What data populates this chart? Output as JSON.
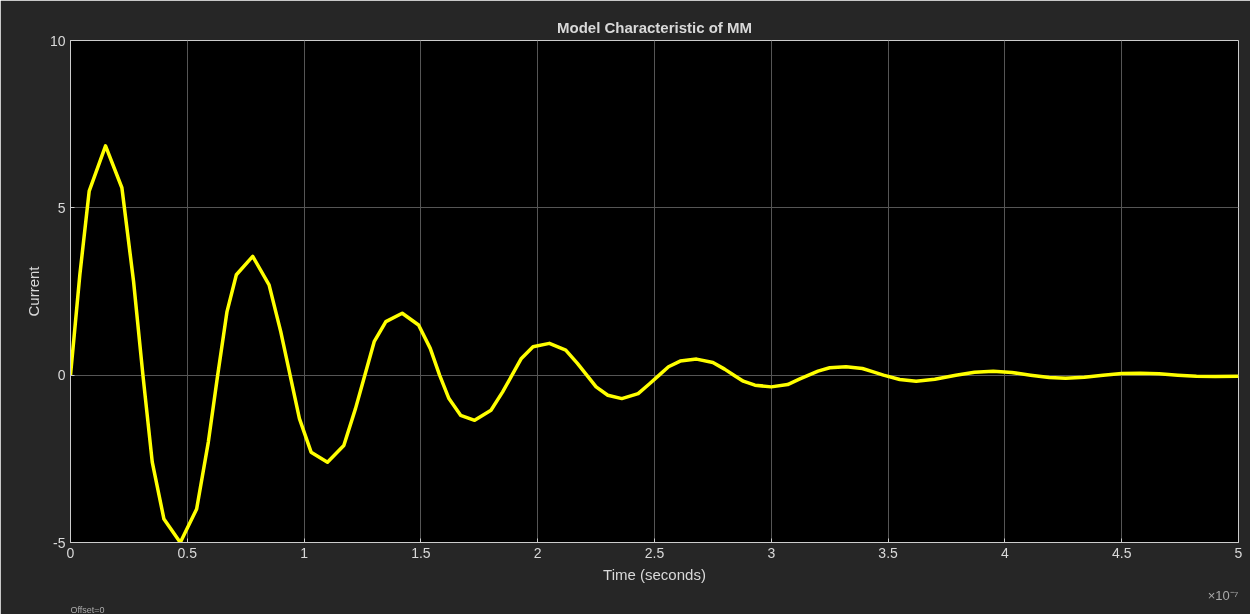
{
  "chart_data": {
    "type": "line",
    "title": "Model Characteristic of MM",
    "xlabel": "Time (seconds)",
    "ylabel": "Current",
    "annotations": [
      "×10⁻⁷",
      "Offset=0"
    ],
    "xlim": [
      0,
      5
    ],
    "ylim": [
      -5,
      10
    ],
    "xticks": [
      0,
      0.5,
      1,
      1.5,
      2,
      2.5,
      3,
      3.5,
      4,
      4.5,
      5
    ],
    "yticks": [
      -5,
      0,
      5,
      10
    ],
    "grid": true,
    "marker": "none",
    "line_style": "solid",
    "series": [
      {
        "color": "#ffff00",
        "x": [
          0,
          0.04,
          0.08,
          0.15,
          0.22,
          0.27,
          0.31,
          0.35,
          0.4,
          0.47,
          0.54,
          0.59,
          0.63,
          0.67,
          0.71,
          0.78,
          0.85,
          0.9,
          0.94,
          0.98,
          1.03,
          1.1,
          1.17,
          1.22,
          1.26,
          1.3,
          1.35,
          1.42,
          1.49,
          1.54,
          1.58,
          1.62,
          1.67,
          1.73,
          1.8,
          1.85,
          1.89,
          1.93,
          1.98,
          2.05,
          2.12,
          2.17,
          2.21,
          2.25,
          2.3,
          2.36,
          2.43,
          2.48,
          2.52,
          2.56,
          2.61,
          2.68,
          2.75,
          2.8,
          2.84,
          2.88,
          2.93,
          3.0,
          3.07,
          3.12,
          3.16,
          3.2,
          3.25,
          3.32,
          3.39,
          3.44,
          3.48,
          3.55,
          3.62,
          3.7,
          3.79,
          3.87,
          3.95,
          4.03,
          4.11,
          4.19,
          4.26,
          4.34,
          4.42,
          4.5,
          4.58,
          4.66,
          4.74,
          4.82,
          4.9,
          5.0
        ],
        "values": [
          0,
          3.0,
          5.5,
          6.85,
          5.6,
          2.8,
          0,
          -2.6,
          -4.3,
          -5.0,
          -4.0,
          -2.0,
          0,
          1.9,
          3.0,
          3.55,
          2.7,
          1.3,
          0,
          -1.3,
          -2.3,
          -2.6,
          -2.1,
          -1.0,
          0,
          1.0,
          1.6,
          1.85,
          1.5,
          0.8,
          0,
          -0.7,
          -1.2,
          -1.35,
          -1.05,
          -0.5,
          0,
          0.5,
          0.85,
          0.95,
          0.75,
          0.35,
          0,
          -0.35,
          -0.6,
          -0.7,
          -0.55,
          -0.25,
          0,
          0.25,
          0.42,
          0.48,
          0.38,
          0.18,
          0,
          -0.18,
          -0.3,
          -0.35,
          -0.28,
          -0.12,
          0,
          0.12,
          0.22,
          0.25,
          0.2,
          0.09,
          0,
          -0.13,
          -0.18,
          -0.12,
          0,
          0.09,
          0.12,
          0.08,
          0,
          -0.07,
          -0.09,
          -0.06,
          0,
          0.05,
          0.06,
          0.04,
          0,
          -0.03,
          -0.04,
          -0.03
        ]
      }
    ]
  }
}
